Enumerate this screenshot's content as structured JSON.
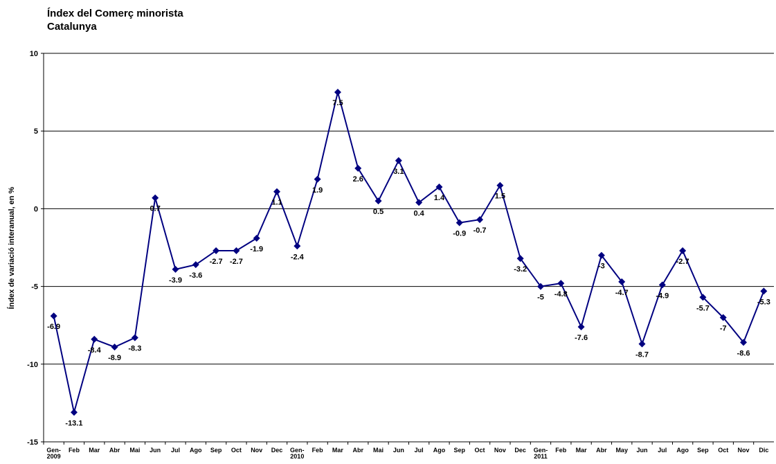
{
  "chart_data": {
    "type": "line",
    "title": "Índex del Comerç minorista",
    "subtitle": "Catalunya",
    "y_label": "Índex de variació interanual, en %",
    "categories": [
      "Gen-\n2009",
      "Feb",
      "Mar",
      "Abr",
      "Mai",
      "Jun",
      "Jul",
      "Ago",
      "Sep",
      "Oct",
      "Nov",
      "Dec",
      "Gen-\n2010",
      "Feb",
      "Mar",
      "Abr",
      "Mai",
      "Jun",
      "Jul",
      "Ago",
      "Sep",
      "Oct",
      "Nov",
      "Dec",
      "Gen-\n2011",
      "Feb",
      "Mar",
      "Abr",
      "May",
      "Jun",
      "Jul",
      "Ago",
      "Sep",
      "Oct",
      "Nov",
      "Dic"
    ],
    "series": [
      {
        "color": "#000080",
        "values": [
          -6.9,
          -13.1,
          -8.4,
          -8.9,
          -8.3,
          0.7,
          -3.9,
          -3.6,
          -2.7,
          -2.7,
          -1.9,
          1.1,
          -2.4,
          1.9,
          7.5,
          2.6,
          0.5,
          3.1,
          0.4,
          1.4,
          -0.9,
          -0.7,
          1.5,
          -3.2,
          -5,
          -4.8,
          -7.6,
          -3,
          -4.7,
          -8.7,
          -4.9,
          -2.7,
          -5.7,
          -7,
          -8.6,
          -5.3
        ]
      }
    ],
    "ylim": [
      -15,
      10
    ],
    "yticks": [
      -15,
      -10,
      -5,
      0,
      5,
      10
    ],
    "grid": true
  }
}
